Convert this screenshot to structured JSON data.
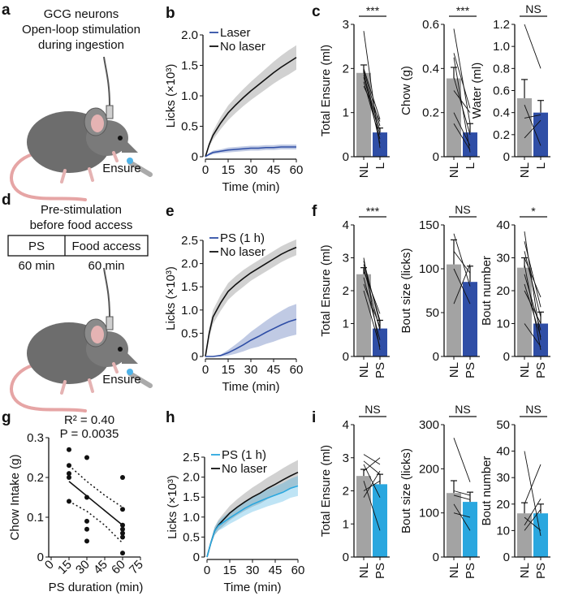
{
  "panel_letters": {
    "a": "a",
    "b": "b",
    "c": "c",
    "d": "d",
    "e": "e",
    "f": "f",
    "g": "g",
    "h": "h",
    "i": "i"
  },
  "panel_a": {
    "lines": [
      "GCG neurons",
      "Open-loop stimulation",
      "during ingestion"
    ],
    "ensure_label": "Ensure"
  },
  "panel_d": {
    "lines": [
      "Pre-stimulation",
      "before food access"
    ],
    "box_left": "PS",
    "box_right": "Food access",
    "dur_left": "60 min",
    "dur_right": "60 min",
    "ensure_label": "Ensure"
  },
  "colors": {
    "laser_blue": "#2f4ea6",
    "ps_cyan": "#2aa7df",
    "grey_bar": "#a3a3a3",
    "band_grey": "#c8c8c8",
    "mouse": "#6d6d6d",
    "tail": "#e6a5a5"
  },
  "chart_data": [
    {
      "id": "b",
      "type": "line",
      "xlabel": "Time (min)",
      "ylabel": "Licks (×10³)",
      "xlim": [
        0,
        60
      ],
      "ylim": [
        0,
        2.0
      ],
      "xticks": [
        "0",
        "15",
        "30",
        "45",
        "60"
      ],
      "yticks": [
        "0",
        "0.5",
        "1.0",
        "1.5",
        "2.0"
      ],
      "x": [
        0,
        2.5,
        5,
        10,
        15,
        20,
        25,
        30,
        35,
        40,
        45,
        50,
        55,
        60
      ],
      "series": [
        {
          "name": "Laser",
          "color": "#2f4ea6",
          "values": [
            0,
            0.04,
            0.07,
            0.09,
            0.11,
            0.12,
            0.13,
            0.14,
            0.14,
            0.15,
            0.15,
            0.16,
            0.16,
            0.16
          ],
          "sem": [
            0,
            0.02,
            0.03,
            0.03,
            0.04,
            0.04,
            0.04,
            0.04,
            0.04,
            0.04,
            0.04,
            0.04,
            0.04,
            0.04
          ]
        },
        {
          "name": "No laser",
          "color": "#111111",
          "values": [
            0,
            0.2,
            0.35,
            0.55,
            0.72,
            0.85,
            0.97,
            1.08,
            1.18,
            1.28,
            1.38,
            1.47,
            1.55,
            1.63
          ],
          "sem": [
            0,
            0.04,
            0.07,
            0.1,
            0.12,
            0.13,
            0.14,
            0.15,
            0.16,
            0.17,
            0.18,
            0.19,
            0.2,
            0.2
          ]
        }
      ]
    },
    {
      "id": "e",
      "type": "line",
      "xlabel": "Time (min)",
      "ylabel": "Licks (×10³)",
      "xlim": [
        0,
        60
      ],
      "ylim": [
        0,
        2.5
      ],
      "xticks": [
        "0",
        "15",
        "30",
        "45",
        "60"
      ],
      "yticks": [
        "0",
        "0.5",
        "1.0",
        "1.5",
        "2.0",
        "2.5"
      ],
      "x": [
        0,
        2.5,
        5,
        10,
        15,
        20,
        25,
        30,
        35,
        40,
        45,
        50,
        55,
        60
      ],
      "series": [
        {
          "name": "PS (1 h)",
          "color": "#2f4ea6",
          "values": [
            0,
            0,
            0,
            0.02,
            0.08,
            0.16,
            0.25,
            0.35,
            0.43,
            0.52,
            0.6,
            0.68,
            0.75,
            0.8
          ],
          "sem": [
            0,
            0,
            0,
            0.02,
            0.06,
            0.1,
            0.14,
            0.18,
            0.22,
            0.25,
            0.28,
            0.3,
            0.32,
            0.33
          ]
        },
        {
          "name": "No laser",
          "color": "#111111",
          "values": [
            0,
            0.5,
            0.85,
            1.15,
            1.4,
            1.55,
            1.68,
            1.8,
            1.9,
            2.0,
            2.1,
            2.2,
            2.28,
            2.35
          ],
          "sem": [
            0,
            0.1,
            0.15,
            0.17,
            0.18,
            0.18,
            0.18,
            0.17,
            0.17,
            0.17,
            0.17,
            0.17,
            0.17,
            0.17
          ]
        }
      ]
    },
    {
      "id": "h",
      "type": "line",
      "xlabel": "Time (min)",
      "ylabel": "Licks (×10³)",
      "xlim": [
        0,
        60
      ],
      "ylim": [
        0,
        2.5
      ],
      "xticks": [
        "0",
        "15",
        "30",
        "45",
        "60"
      ],
      "yticks": [
        "0",
        "0.5",
        "1.0",
        "1.5",
        "2.0",
        "2.5"
      ],
      "x": [
        0,
        2.5,
        5,
        7.5,
        10,
        15,
        20,
        25,
        30,
        35,
        40,
        45,
        50,
        55,
        60
      ],
      "series": [
        {
          "name": "PS (1 h)",
          "color": "#2aa7df",
          "values": [
            0,
            0.35,
            0.65,
            0.78,
            0.85,
            0.98,
            1.1,
            1.22,
            1.32,
            1.4,
            1.48,
            1.55,
            1.62,
            1.72,
            1.78
          ],
          "sem": [
            0,
            0.05,
            0.1,
            0.12,
            0.14,
            0.15,
            0.17,
            0.18,
            0.19,
            0.2,
            0.21,
            0.22,
            0.23,
            0.24,
            0.25
          ]
        },
        {
          "name": "No laser",
          "color": "#111111",
          "values": [
            0,
            0.35,
            0.65,
            0.8,
            0.9,
            1.1,
            1.25,
            1.38,
            1.5,
            1.6,
            1.72,
            1.82,
            1.93,
            2.03,
            2.12
          ],
          "sem": [
            0,
            0.05,
            0.1,
            0.13,
            0.15,
            0.18,
            0.2,
            0.22,
            0.24,
            0.26,
            0.27,
            0.28,
            0.29,
            0.3,
            0.31
          ]
        }
      ]
    },
    {
      "id": "c1",
      "type": "bar",
      "ylabel": "Total Ensure (ml)",
      "categories": [
        "NL",
        "L"
      ],
      "values": [
        1.9,
        0.55
      ],
      "errors": [
        0.18,
        0.1
      ],
      "ylim": [
        0,
        3
      ],
      "yticks": [
        "0",
        "1",
        "2",
        "3"
      ],
      "significance": "***",
      "colors": [
        "#a3a3a3",
        "#2f4ea6"
      ],
      "pairs": [
        [
          2.85,
          0.2
        ],
        [
          2.0,
          0.85
        ],
        [
          1.95,
          0.7
        ],
        [
          1.85,
          0.6
        ],
        [
          1.8,
          0.5
        ],
        [
          1.7,
          0.4
        ],
        [
          1.9,
          0.3
        ],
        [
          1.6,
          0.8
        ]
      ]
    },
    {
      "id": "c2",
      "type": "bar",
      "ylabel": "Chow (g)",
      "categories": [
        "NL",
        "L"
      ],
      "values": [
        0.355,
        0.11
      ],
      "errors": [
        0.05,
        0.04
      ],
      "ylim": [
        0,
        0.6
      ],
      "yticks": [
        "0",
        "0.2",
        "0.4",
        "0.6"
      ],
      "significance": "***",
      "colors": [
        "#a3a3a3",
        "#2f4ea6"
      ],
      "pairs": [
        [
          0.58,
          0.15
        ],
        [
          0.47,
          0.22
        ],
        [
          0.45,
          0.02
        ],
        [
          0.3,
          0.2
        ],
        [
          0.2,
          0.05
        ],
        [
          0.36,
          0.1
        ],
        [
          0.15,
          0.03
        ]
      ]
    },
    {
      "id": "c3",
      "type": "bar",
      "ylabel": "Water (ml)",
      "categories": [
        "NL",
        "L"
      ],
      "values": [
        0.53,
        0.4
      ],
      "errors": [
        0.17,
        0.11
      ],
      "ylim": [
        0,
        1.2
      ],
      "yticks": [
        "0",
        "0.2",
        "0.4",
        "0.6",
        "0.8",
        "1.0",
        "1.2"
      ],
      "significance": "NS",
      "colors": [
        "#a3a3a3",
        "#2f4ea6"
      ],
      "pairs": [
        [
          1.2,
          0.8
        ],
        [
          0.47,
          0.1
        ],
        [
          0.35,
          0.38
        ],
        [
          0.17,
          0.33
        ]
      ]
    },
    {
      "id": "f1",
      "type": "bar",
      "ylabel": "Total Ensure (ml)",
      "categories": [
        "NL",
        "PS"
      ],
      "values": [
        2.5,
        0.85
      ],
      "errors": [
        0.2,
        0.25
      ],
      "ylim": [
        0,
        4
      ],
      "yticks": [
        "0",
        "1",
        "2",
        "3",
        "4"
      ],
      "significance": "***",
      "colors": [
        "#a3a3a3",
        "#2f4ea6"
      ],
      "pairs": [
        [
          3.0,
          0.2
        ],
        [
          2.9,
          1.0
        ],
        [
          2.7,
          0.8
        ],
        [
          2.6,
          1.3
        ],
        [
          2.4,
          0.5
        ],
        [
          2.2,
          0.9
        ],
        [
          2.0,
          0.3
        ],
        [
          2.8,
          1.1
        ]
      ]
    },
    {
      "id": "f2",
      "type": "bar",
      "ylabel": "Bout size (licks)",
      "categories": [
        "NL",
        "PS"
      ],
      "values": [
        105,
        85
      ],
      "errors": [
        28,
        18
      ],
      "ylim": [
        0,
        150
      ],
      "yticks": [
        "0",
        "50",
        "100",
        "150"
      ],
      "significance": "NS",
      "colors": [
        "#a3a3a3",
        "#2f4ea6"
      ],
      "pairs": [
        [
          140,
          80
        ],
        [
          100,
          60
        ],
        [
          60,
          105
        ],
        [
          120,
          95
        ]
      ]
    },
    {
      "id": "f3",
      "type": "bar",
      "ylabel": "Bout number",
      "categories": [
        "NL",
        "PS"
      ],
      "values": [
        27,
        10
      ],
      "errors": [
        3,
        3.5
      ],
      "ylim": [
        0,
        40
      ],
      "yticks": [
        "0",
        "10",
        "20",
        "30",
        "40"
      ],
      "significance": "*",
      "colors": [
        "#a3a3a3",
        "#2f4ea6"
      ],
      "pairs": [
        [
          38,
          5
        ],
        [
          35,
          15
        ],
        [
          32,
          12
        ],
        [
          30,
          18
        ],
        [
          28,
          2
        ],
        [
          25,
          8
        ],
        [
          20,
          10
        ],
        [
          10,
          3
        ],
        [
          22,
          6
        ]
      ]
    },
    {
      "id": "i1",
      "type": "bar",
      "ylabel": "Total Ensure (ml)",
      "categories": [
        "NL",
        "PS"
      ],
      "values": [
        2.45,
        2.2
      ],
      "errors": [
        0.2,
        0.3
      ],
      "ylim": [
        0,
        4
      ],
      "yticks": [
        "0",
        "1",
        "2",
        "3",
        "4"
      ],
      "significance": "NS",
      "colors": [
        "#a3a3a3",
        "#2aa7df"
      ],
      "pairs": [
        [
          3.1,
          2.8
        ],
        [
          2.9,
          2.5
        ],
        [
          2.8,
          1.8
        ],
        [
          2.6,
          3.0
        ],
        [
          2.3,
          0.8
        ],
        [
          2.0,
          2.3
        ],
        [
          1.8,
          2.6
        ]
      ]
    },
    {
      "id": "i2",
      "type": "bar",
      "ylabel": "Bout size (licks)",
      "categories": [
        "NL",
        "PS"
      ],
      "values": [
        145,
        125
      ],
      "errors": [
        28,
        22
      ],
      "ylim": [
        0,
        300
      ],
      "yticks": [
        "0",
        "100",
        "200",
        "300"
      ],
      "significance": "NS",
      "colors": [
        "#a3a3a3",
        "#2aa7df"
      ],
      "pairs": [
        [
          270,
          170
        ],
        [
          150,
          140
        ],
        [
          120,
          60
        ],
        [
          100,
          90
        ],
        [
          140,
          130
        ]
      ]
    },
    {
      "id": "i3",
      "type": "bar",
      "ylabel": "Bout number",
      "categories": [
        "NL",
        "PS"
      ],
      "values": [
        16.5,
        16.5
      ],
      "errors": [
        4,
        3.5
      ],
      "ylim": [
        0,
        50
      ],
      "yticks": [
        "0",
        "10",
        "20",
        "30",
        "40",
        "50"
      ],
      "significance": "NS",
      "colors": [
        "#a3a3a3",
        "#2aa7df"
      ],
      "pairs": [
        [
          40,
          8
        ],
        [
          20,
          35
        ],
        [
          15,
          10
        ],
        [
          10,
          18
        ],
        [
          12,
          22
        ]
      ]
    },
    {
      "id": "g",
      "type": "scatter",
      "xlabel": "PS duration (min)",
      "ylabel": "Chow Intake (g)",
      "xlim": [
        0,
        75
      ],
      "ylim": [
        0,
        0.3
      ],
      "xticks": [
        "0",
        "15",
        "30",
        "45",
        "60",
        "75"
      ],
      "yticks": [
        "0",
        "0.1",
        "0.2",
        "0.3"
      ],
      "annotation_r2": "R² = 0.40",
      "annotation_p": "P = 0.0035",
      "points": [
        [
          15,
          0.27
        ],
        [
          15,
          0.23
        ],
        [
          15,
          0.21
        ],
        [
          15,
          0.2
        ],
        [
          15,
          0.14
        ],
        [
          30,
          0.25
        ],
        [
          30,
          0.15
        ],
        [
          30,
          0.09
        ],
        [
          30,
          0.07
        ],
        [
          30,
          0.04
        ],
        [
          60,
          0.2
        ],
        [
          60,
          0.12
        ],
        [
          60,
          0.08
        ],
        [
          60,
          0.07
        ],
        [
          60,
          0.06
        ],
        [
          60,
          0.05
        ],
        [
          60,
          0.01
        ]
      ],
      "fit": [
        [
          15,
          0.19
        ],
        [
          60,
          0.08
        ]
      ],
      "ci_upper": [
        [
          15,
          0.23
        ],
        [
          30,
          0.19
        ],
        [
          45,
          0.155
        ],
        [
          60,
          0.125
        ]
      ],
      "ci_lower": [
        [
          15,
          0.14
        ],
        [
          30,
          0.115
        ],
        [
          45,
          0.08
        ],
        [
          60,
          0.035
        ]
      ]
    }
  ]
}
